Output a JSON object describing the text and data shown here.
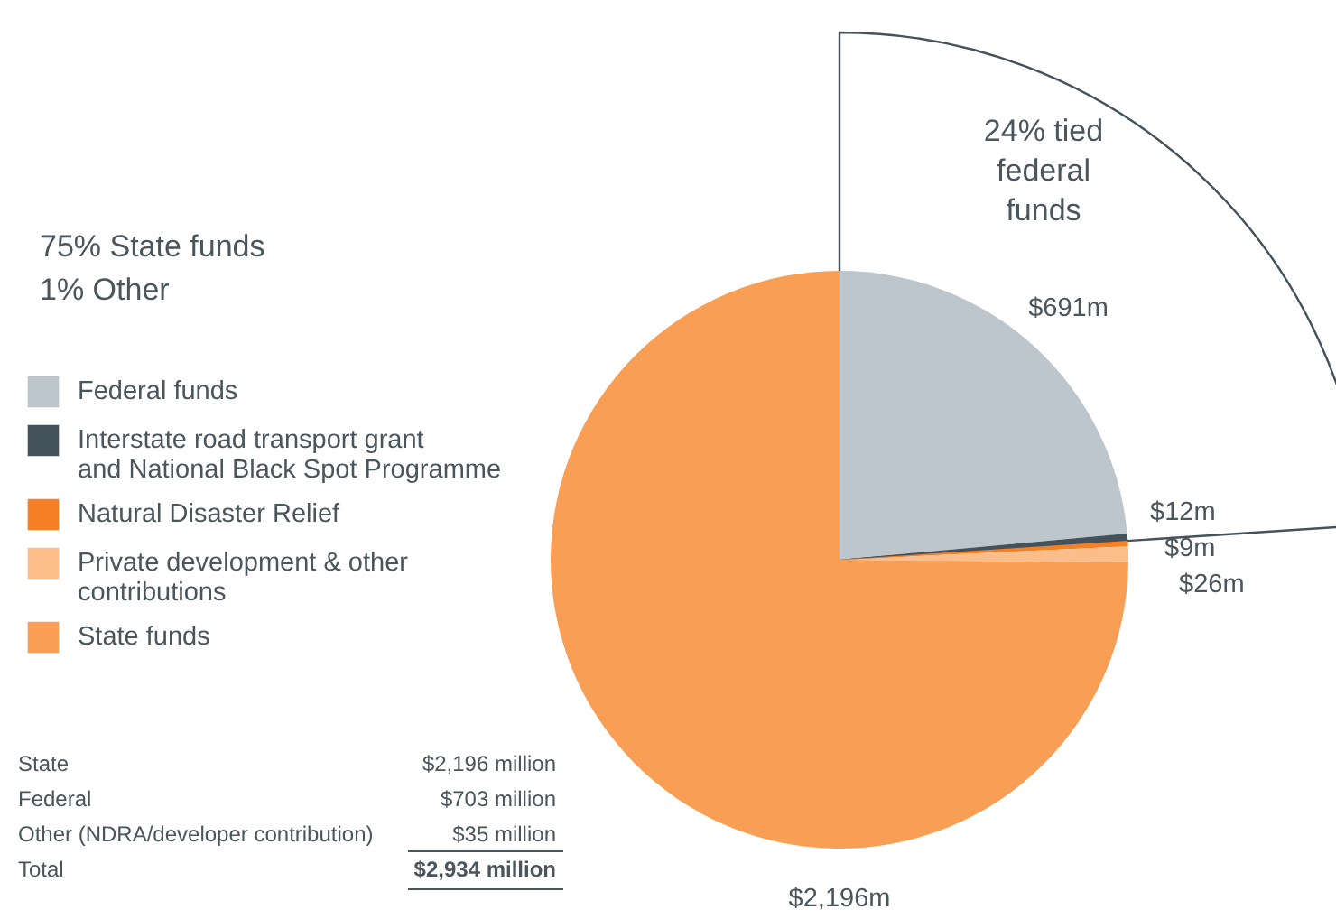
{
  "chart_data": {
    "type": "pie",
    "categories": [
      "Federal funds",
      "Interstate road transport grant and National Black Spot Programme",
      "Natural Disaster Relief",
      "Private development & other contributions",
      "State funds"
    ],
    "values": [
      691,
      12,
      9,
      26,
      2196
    ],
    "colors": [
      "#bcc6cc",
      "#44525c",
      "#f58025",
      "#fbbd8a",
      "#f89e55"
    ],
    "value_labels": [
      "$691m",
      "$12m",
      "$9m",
      "$26m",
      "$2,196m"
    ],
    "legend": "left",
    "annotations": [
      "75% State funds\n1% Other",
      "24% tied\nfederal\nfunds",
      "State",
      "$2,196 million",
      "Federal",
      "$703 million",
      "Other (NDRA/developer contribution)",
      "$35 million",
      "Total",
      "$2,934 million"
    ]
  }
}
